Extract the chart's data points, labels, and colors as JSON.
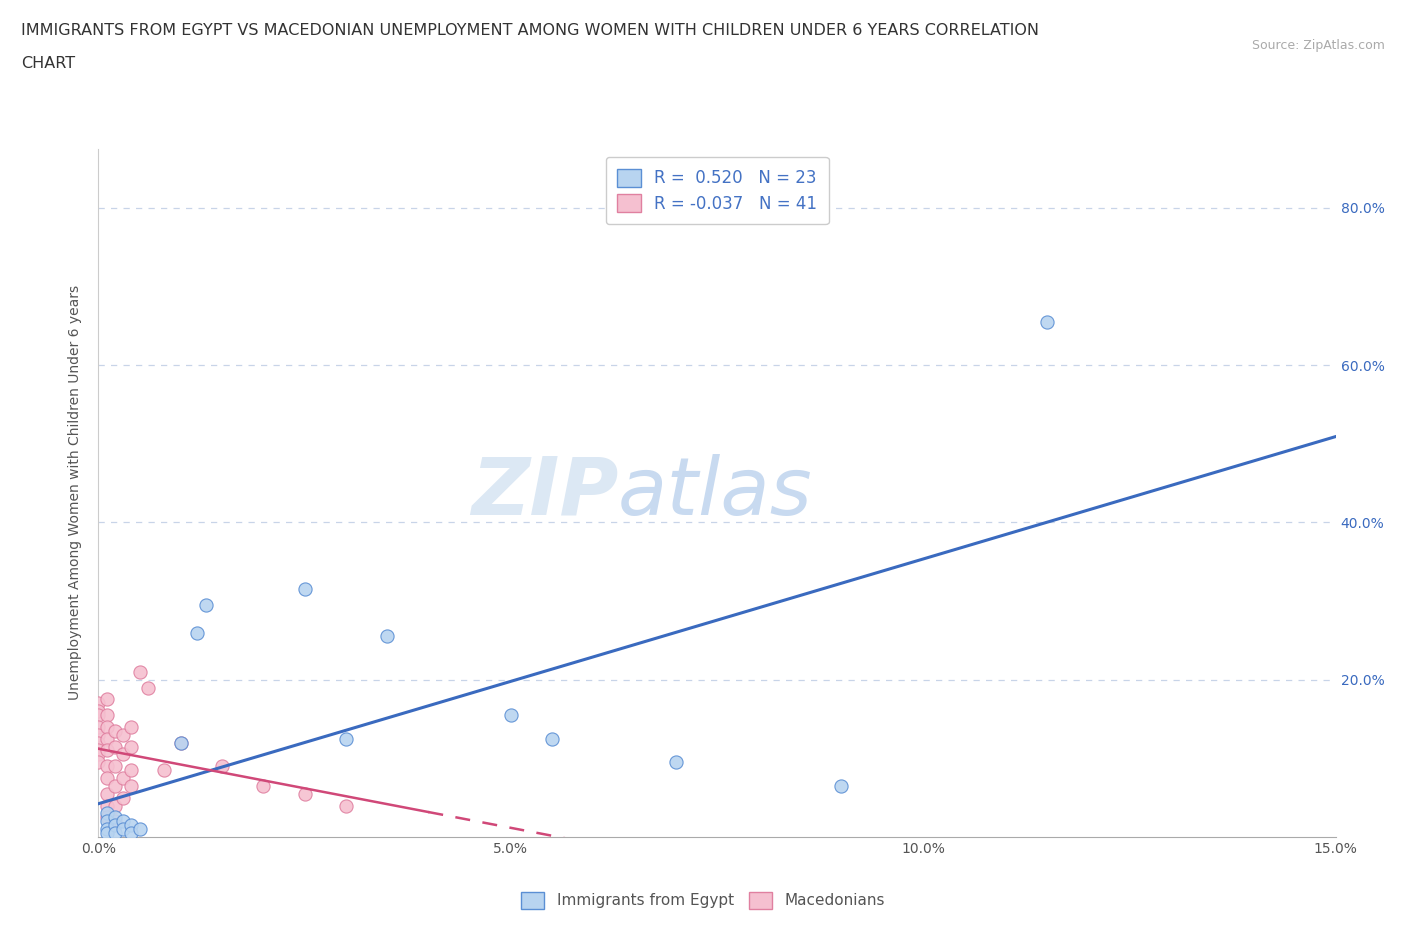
{
  "title_line1": "IMMIGRANTS FROM EGYPT VS MACEDONIAN UNEMPLOYMENT AMONG WOMEN WITH CHILDREN UNDER 6 YEARS CORRELATION",
  "title_line2": "CHART",
  "source": "Source: ZipAtlas.com",
  "ylabel": "Unemployment Among Women with Children Under 6 years",
  "r_egypt": 0.52,
  "n_egypt": 23,
  "r_macedonian": -0.037,
  "n_macedonian": 41,
  "xlim": [
    0.0,
    0.15
  ],
  "ylim": [
    0.0,
    0.875
  ],
  "xtick_values": [
    0.0,
    0.05,
    0.1,
    0.15
  ],
  "xtick_labels": [
    "0.0%",
    "5.0%",
    "10.0%",
    "15.0%"
  ],
  "ytick_values": [
    0.2,
    0.4,
    0.6,
    0.8
  ],
  "ytick_labels": [
    "20.0%",
    "40.0%",
    "60.0%",
    "80.0%"
  ],
  "color_egypt": "#b8d4f0",
  "color_egypt_edge": "#5b8fd4",
  "color_egypt_line": "#3a6abf",
  "color_macedonian": "#f5c0d0",
  "color_macedonian_edge": "#e080a0",
  "color_macedonian_line": "#d04878",
  "background_color": "#ffffff",
  "plot_bg_color": "#ffffff",
  "grid_color": "#c8d4e8",
  "watermark_zip": "ZIP",
  "watermark_atlas": "atlas",
  "legend_r_color": "#4472c4",
  "egypt_scatter": [
    [
      0.001,
      0.03
    ],
    [
      0.001,
      0.02
    ],
    [
      0.001,
      0.01
    ],
    [
      0.001,
      0.005
    ],
    [
      0.002,
      0.025
    ],
    [
      0.002,
      0.015
    ],
    [
      0.002,
      0.005
    ],
    [
      0.003,
      0.02
    ],
    [
      0.003,
      0.01
    ],
    [
      0.004,
      0.015
    ],
    [
      0.004,
      0.005
    ],
    [
      0.005,
      0.01
    ],
    [
      0.01,
      0.12
    ],
    [
      0.012,
      0.26
    ],
    [
      0.013,
      0.295
    ],
    [
      0.025,
      0.315
    ],
    [
      0.03,
      0.125
    ],
    [
      0.035,
      0.255
    ],
    [
      0.05,
      0.155
    ],
    [
      0.055,
      0.125
    ],
    [
      0.07,
      0.095
    ],
    [
      0.09,
      0.065
    ],
    [
      0.115,
      0.655
    ]
  ],
  "macedonian_scatter": [
    [
      0.0,
      0.17
    ],
    [
      0.0,
      0.16
    ],
    [
      0.0,
      0.155
    ],
    [
      0.0,
      0.14
    ],
    [
      0.0,
      0.13
    ],
    [
      0.0,
      0.12
    ],
    [
      0.0,
      0.11
    ],
    [
      0.0,
      0.105
    ],
    [
      0.0,
      0.095
    ],
    [
      0.001,
      0.175
    ],
    [
      0.001,
      0.155
    ],
    [
      0.001,
      0.14
    ],
    [
      0.001,
      0.125
    ],
    [
      0.001,
      0.11
    ],
    [
      0.001,
      0.09
    ],
    [
      0.001,
      0.075
    ],
    [
      0.001,
      0.055
    ],
    [
      0.001,
      0.04
    ],
    [
      0.001,
      0.025
    ],
    [
      0.002,
      0.135
    ],
    [
      0.002,
      0.115
    ],
    [
      0.002,
      0.09
    ],
    [
      0.002,
      0.065
    ],
    [
      0.002,
      0.04
    ],
    [
      0.002,
      0.02
    ],
    [
      0.003,
      0.13
    ],
    [
      0.003,
      0.105
    ],
    [
      0.003,
      0.075
    ],
    [
      0.003,
      0.05
    ],
    [
      0.004,
      0.14
    ],
    [
      0.004,
      0.115
    ],
    [
      0.004,
      0.085
    ],
    [
      0.004,
      0.065
    ],
    [
      0.005,
      0.21
    ],
    [
      0.006,
      0.19
    ],
    [
      0.008,
      0.085
    ],
    [
      0.01,
      0.12
    ],
    [
      0.015,
      0.09
    ],
    [
      0.02,
      0.065
    ],
    [
      0.025,
      0.055
    ],
    [
      0.03,
      0.04
    ]
  ],
  "egypt_line_x": [
    0.0,
    0.15
  ],
  "egypt_line_y": [
    0.0,
    0.5
  ],
  "mac_line_x": [
    0.0,
    0.15
  ],
  "mac_line_y": [
    0.055,
    0.0
  ]
}
